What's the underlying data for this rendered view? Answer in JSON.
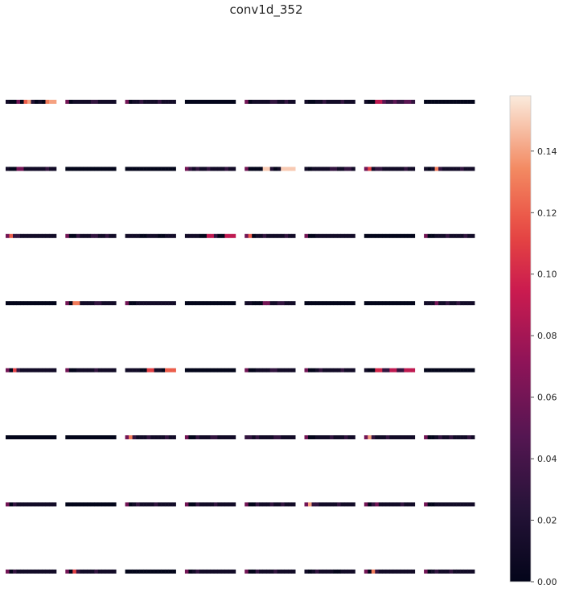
{
  "chart_data": {
    "type": "heatmap",
    "title": "conv1d_352",
    "colormap": "rocket",
    "rows": 8,
    "cols": 8,
    "cells": [
      [
        [
          0.01,
          0.0,
          0.0,
          0.06,
          0.0,
          0.12,
          0.14,
          0.02,
          0.0,
          0.01,
          0.0,
          0.13,
          0.14,
          0.14
        ],
        [
          0.06,
          0.0,
          0.01,
          0.01,
          0.01,
          0.01,
          0.01,
          0.03,
          0.03,
          0.01,
          0.01,
          0.01,
          0.01,
          0.01
        ],
        [
          0.06,
          0.0,
          0.01,
          0.01,
          0.03,
          0.01,
          0.01,
          0.01,
          0.01,
          0.03,
          0.01,
          0.01,
          0.01,
          0.01
        ],
        [
          0.0,
          0.0,
          0.0,
          0.0,
          0.0,
          0.0,
          0.0,
          0.0,
          0.0,
          0.0,
          0.0,
          0.0,
          0.0,
          0.0
        ],
        [
          0.06,
          0.0,
          0.01,
          0.01,
          0.01,
          0.01,
          0.01,
          0.03,
          0.03,
          0.01,
          0.01,
          0.03,
          0.01,
          0.01
        ],
        [
          0.01,
          0.0,
          0.0,
          0.01,
          0.01,
          0.03,
          0.01,
          0.01,
          0.01,
          0.01,
          0.03,
          0.01,
          0.01,
          0.01
        ],
        [
          0.01,
          0.0,
          0.0,
          0.09,
          0.09,
          0.05,
          0.03,
          0.03,
          0.05,
          0.03,
          0.03,
          0.05,
          0.05,
          0.03
        ],
        [
          0.0,
          0.0,
          0.0,
          0.0,
          0.0,
          0.0,
          0.0,
          0.0,
          0.0,
          0.0,
          0.0,
          0.0,
          0.0,
          0.0
        ]
      ],
      [
        [
          0.01,
          0.0,
          0.0,
          0.06,
          0.06,
          0.01,
          0.01,
          0.01,
          0.01,
          0.01,
          0.01,
          0.03,
          0.01,
          0.01
        ],
        [
          0.0,
          0.0,
          0.0,
          0.0,
          0.0,
          0.0,
          0.0,
          0.0,
          0.0,
          0.0,
          0.0,
          0.0,
          0.0,
          0.0
        ],
        [
          0.0,
          0.0,
          0.0,
          0.0,
          0.0,
          0.0,
          0.0,
          0.0,
          0.0,
          0.0,
          0.0,
          0.0,
          0.0,
          0.0
        ],
        [
          0.06,
          0.03,
          0.01,
          0.03,
          0.01,
          0.01,
          0.03,
          0.01,
          0.01,
          0.01,
          0.01,
          0.03,
          0.01,
          0.01
        ],
        [
          0.06,
          0.0,
          0.0,
          0.0,
          0.0,
          0.15,
          0.15,
          0.02,
          0.0,
          0.01,
          0.15,
          0.15,
          0.15,
          0.15
        ],
        [
          0.01,
          0.0,
          0.01,
          0.01,
          0.01,
          0.01,
          0.01,
          0.03,
          0.03,
          0.01,
          0.01,
          0.03,
          0.03,
          0.01
        ],
        [
          0.06,
          0.11,
          0.01,
          0.03,
          0.03,
          0.01,
          0.01,
          0.01,
          0.01,
          0.01,
          0.01,
          0.03,
          0.01,
          0.01
        ],
        [
          0.01,
          0.0,
          0.01,
          0.13,
          0.03,
          0.01,
          0.01,
          0.01,
          0.01,
          0.01,
          0.03,
          0.01,
          0.01,
          0.01
        ]
      ],
      [
        [
          0.06,
          0.12,
          0.03,
          0.03,
          0.01,
          0.01,
          0.01,
          0.01,
          0.01,
          0.01,
          0.01,
          0.01,
          0.01,
          0.01
        ],
        [
          0.06,
          0.0,
          0.0,
          0.03,
          0.01,
          0.01,
          0.01,
          0.03,
          0.03,
          0.01,
          0.01,
          0.03,
          0.01,
          0.01
        ],
        [
          0.01,
          0.01,
          0.01,
          0.01,
          0.0,
          0.0,
          0.01,
          0.01,
          0.01,
          0.0,
          0.0,
          0.01,
          0.01,
          0.01
        ],
        [
          0.01,
          0.01,
          0.01,
          0.01,
          0.0,
          0.0,
          0.09,
          0.09,
          0.03,
          0.0,
          0.0,
          0.09,
          0.09,
          0.09
        ],
        [
          0.06,
          0.12,
          0.0,
          0.01,
          0.01,
          0.03,
          0.01,
          0.01,
          0.01,
          0.01,
          0.01,
          0.03,
          0.01,
          0.01
        ],
        [
          0.06,
          0.0,
          0.0,
          0.01,
          0.01,
          0.01,
          0.01,
          0.01,
          0.01,
          0.01,
          0.01,
          0.01,
          0.01,
          0.01
        ],
        [
          0.0,
          0.0,
          0.0,
          0.0,
          0.0,
          0.0,
          0.0,
          0.0,
          0.0,
          0.0,
          0.0,
          0.0,
          0.0,
          0.0
        ],
        [
          0.06,
          0.0,
          0.0,
          0.01,
          0.01,
          0.01,
          0.03,
          0.01,
          0.01,
          0.01,
          0.01,
          0.03,
          0.01,
          0.01
        ]
      ],
      [
        [
          0.0,
          0.0,
          0.0,
          0.0,
          0.0,
          0.0,
          0.0,
          0.0,
          0.0,
          0.0,
          0.0,
          0.0,
          0.0,
          0.0
        ],
        [
          0.06,
          0.0,
          0.13,
          0.13,
          0.01,
          0.01,
          0.01,
          0.01,
          0.03,
          0.03,
          0.01,
          0.01,
          0.01,
          0.01
        ],
        [
          0.06,
          0.0,
          0.0,
          0.01,
          0.01,
          0.01,
          0.01,
          0.01,
          0.01,
          0.01,
          0.01,
          0.01,
          0.01,
          0.01
        ],
        [
          0.0,
          0.0,
          0.0,
          0.0,
          0.0,
          0.0,
          0.0,
          0.0,
          0.0,
          0.0,
          0.0,
          0.0,
          0.0,
          0.0
        ],
        [
          0.01,
          0.01,
          0.0,
          0.0,
          0.0,
          0.06,
          0.06,
          0.01,
          0.01,
          0.03,
          0.03,
          0.01,
          0.01,
          0.01
        ],
        [
          0.0,
          0.0,
          0.0,
          0.0,
          0.0,
          0.0,
          0.0,
          0.0,
          0.0,
          0.0,
          0.0,
          0.0,
          0.0,
          0.0
        ],
        [
          0.0,
          0.0,
          0.0,
          0.0,
          0.0,
          0.0,
          0.0,
          0.0,
          0.0,
          0.0,
          0.0,
          0.0,
          0.0,
          0.0
        ],
        [
          0.01,
          0.01,
          0.01,
          0.06,
          0.01,
          0.01,
          0.03,
          0.01,
          0.01,
          0.03,
          0.01,
          0.01,
          0.01,
          0.01
        ]
      ],
      [
        [
          0.06,
          0.0,
          0.11,
          0.03,
          0.01,
          0.01,
          0.01,
          0.01,
          0.01,
          0.01,
          0.01,
          0.01,
          0.01,
          0.01
        ],
        [
          0.06,
          0.0,
          0.0,
          0.01,
          0.01,
          0.01,
          0.01,
          0.01,
          0.03,
          0.01,
          0.01,
          0.01,
          0.01,
          0.01
        ],
        [
          0.01,
          0.01,
          0.01,
          0.01,
          0.0,
          0.0,
          0.11,
          0.11,
          0.01,
          0.01,
          0.0,
          0.12,
          0.12,
          0.12
        ],
        [
          0.0,
          0.0,
          0.0,
          0.0,
          0.0,
          0.0,
          0.0,
          0.0,
          0.0,
          0.0,
          0.0,
          0.0,
          0.0,
          0.0
        ],
        [
          0.06,
          0.0,
          0.0,
          0.01,
          0.01,
          0.01,
          0.01,
          0.03,
          0.03,
          0.01,
          0.01,
          0.01,
          0.01,
          0.01
        ],
        [
          0.06,
          0.0,
          0.0,
          0.01,
          0.03,
          0.01,
          0.01,
          0.01,
          0.01,
          0.01,
          0.03,
          0.01,
          0.01,
          0.01
        ],
        [
          0.01,
          0.0,
          0.0,
          0.1,
          0.1,
          0.03,
          0.03,
          0.09,
          0.09,
          0.03,
          0.03,
          0.09,
          0.09,
          0.09
        ],
        [
          0.0,
          0.0,
          0.0,
          0.0,
          0.0,
          0.0,
          0.0,
          0.0,
          0.0,
          0.0,
          0.0,
          0.0,
          0.0,
          0.0
        ]
      ],
      [
        [
          0.0,
          0.0,
          0.0,
          0.0,
          0.0,
          0.0,
          0.0,
          0.0,
          0.0,
          0.0,
          0.0,
          0.0,
          0.0,
          0.0
        ],
        [
          0.0,
          0.0,
          0.0,
          0.0,
          0.0,
          0.0,
          0.0,
          0.0,
          0.0,
          0.0,
          0.0,
          0.0,
          0.0,
          0.0
        ],
        [
          0.06,
          0.13,
          0.03,
          0.01,
          0.01,
          0.01,
          0.03,
          0.01,
          0.01,
          0.01,
          0.01,
          0.03,
          0.01,
          0.01
        ],
        [
          0.06,
          0.0,
          0.0,
          0.03,
          0.01,
          0.01,
          0.01,
          0.03,
          0.03,
          0.01,
          0.01,
          0.01,
          0.01,
          0.01
        ],
        [
          0.03,
          0.03,
          0.01,
          0.03,
          0.01,
          0.01,
          0.01,
          0.01,
          0.03,
          0.03,
          0.01,
          0.01,
          0.01,
          0.01
        ],
        [
          0.06,
          0.0,
          0.0,
          0.01,
          0.01,
          0.01,
          0.01,
          0.03,
          0.01,
          0.01,
          0.01,
          0.03,
          0.01,
          0.01
        ],
        [
          0.06,
          0.14,
          0.03,
          0.01,
          0.01,
          0.01,
          0.03,
          0.01,
          0.01,
          0.01,
          0.01,
          0.01,
          0.01,
          0.01
        ],
        [
          0.06,
          0.0,
          0.0,
          0.01,
          0.03,
          0.01,
          0.01,
          0.03,
          0.01,
          0.01,
          0.01,
          0.01,
          0.03,
          0.01
        ]
      ],
      [
        [
          0.06,
          0.0,
          0.03,
          0.01,
          0.01,
          0.01,
          0.01,
          0.01,
          0.01,
          0.01,
          0.01,
          0.01,
          0.01,
          0.01
        ],
        [
          0.0,
          0.0,
          0.0,
          0.0,
          0.0,
          0.0,
          0.0,
          0.0,
          0.0,
          0.0,
          0.0,
          0.0,
          0.0,
          0.0
        ],
        [
          0.06,
          0.0,
          0.01,
          0.03,
          0.01,
          0.01,
          0.01,
          0.01,
          0.03,
          0.01,
          0.01,
          0.01,
          0.01,
          0.01
        ],
        [
          0.06,
          0.0,
          0.0,
          0.03,
          0.01,
          0.01,
          0.01,
          0.01,
          0.03,
          0.01,
          0.01,
          0.01,
          0.01,
          0.01
        ],
        [
          0.06,
          0.0,
          0.0,
          0.03,
          0.01,
          0.01,
          0.01,
          0.03,
          0.01,
          0.01,
          0.03,
          0.01,
          0.01,
          0.01
        ],
        [
          0.06,
          0.14,
          0.03,
          0.03,
          0.01,
          0.01,
          0.01,
          0.01,
          0.01,
          0.03,
          0.01,
          0.01,
          0.01,
          0.01
        ],
        [
          0.06,
          0.0,
          0.03,
          0.06,
          0.01,
          0.01,
          0.01,
          0.01,
          0.01,
          0.01,
          0.03,
          0.01,
          0.01,
          0.01
        ],
        [
          0.06,
          0.0,
          0.0,
          0.01,
          0.01,
          0.01,
          0.01,
          0.01,
          0.01,
          0.01,
          0.01,
          0.01,
          0.01,
          0.01
        ]
      ],
      [
        [
          0.06,
          0.0,
          0.03,
          0.01,
          0.01,
          0.01,
          0.01,
          0.01,
          0.01,
          0.01,
          0.01,
          0.01,
          0.01,
          0.01
        ],
        [
          0.06,
          0.0,
          0.11,
          0.03,
          0.01,
          0.01,
          0.01,
          0.01,
          0.03,
          0.01,
          0.01,
          0.01,
          0.01,
          0.01
        ],
        [
          0.0,
          0.0,
          0.0,
          0.0,
          0.0,
          0.0,
          0.0,
          0.0,
          0.0,
          0.0,
          0.0,
          0.0,
          0.0,
          0.0
        ],
        [
          0.06,
          0.0,
          0.01,
          0.03,
          0.01,
          0.01,
          0.01,
          0.01,
          0.01,
          0.01,
          0.01,
          0.01,
          0.01,
          0.01
        ],
        [
          0.06,
          0.0,
          0.0,
          0.03,
          0.01,
          0.01,
          0.01,
          0.01,
          0.03,
          0.01,
          0.01,
          0.01,
          0.01,
          0.01
        ],
        [
          0.01,
          0.0,
          0.01,
          0.03,
          0.01,
          0.01,
          0.01,
          0.01,
          0.0,
          0.0,
          0.01,
          0.01,
          0.01,
          0.01
        ],
        [
          0.06,
          0.0,
          0.13,
          0.03,
          0.01,
          0.01,
          0.01,
          0.01,
          0.01,
          0.01,
          0.01,
          0.01,
          0.01,
          0.01
        ],
        [
          0.06,
          0.0,
          0.01,
          0.03,
          0.01,
          0.01,
          0.01,
          0.03,
          0.01,
          0.01,
          0.01,
          0.01,
          0.01,
          0.01
        ]
      ]
    ],
    "colorbar": {
      "min": 0.0,
      "max": 0.158,
      "ticks": [
        "0.00",
        "0.02",
        "0.04",
        "0.06",
        "0.08",
        "0.10",
        "0.12",
        "0.14"
      ]
    },
    "grid": false
  }
}
